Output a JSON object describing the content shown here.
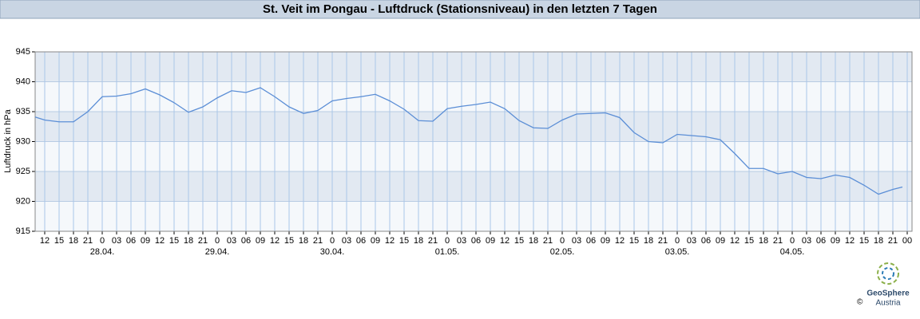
{
  "chart_data": {
    "type": "line",
    "title": "St. Veit im Pongau - Luftdruck (Stationsniveau) in den letzten 7 Tagen",
    "y_label": "Luftdruck in hPa",
    "x": [
      10,
      12,
      15,
      18,
      21,
      24,
      27,
      30,
      33,
      36,
      39,
      42,
      45,
      48,
      51,
      54,
      57,
      60,
      63,
      66,
      69,
      72,
      75,
      78,
      81,
      84,
      87,
      90,
      93,
      96,
      99,
      102,
      105,
      108,
      111,
      114,
      117,
      120,
      123,
      126,
      129,
      132,
      135,
      138,
      141,
      144,
      147,
      150,
      153,
      156,
      159,
      162,
      165,
      168,
      171,
      174,
      177,
      180,
      183,
      186,
      189,
      191
    ],
    "series": [
      {
        "name": "Luftdruck",
        "color": "#5b8ed6",
        "values": [
          934.1,
          933.6,
          933.3,
          933.3,
          935,
          937.5,
          937.6,
          938,
          938.8,
          937.8,
          936.5,
          934.9,
          935.8,
          937.3,
          938.5,
          938.2,
          939,
          937.5,
          935.8,
          934.7,
          935.2,
          936.8,
          937.2,
          937.5,
          937.9,
          936.8,
          935.4,
          933.5,
          933.4,
          935.5,
          935.9,
          936.2,
          936.6,
          935.5,
          933.5,
          932.3,
          932.2,
          933.6,
          934.6,
          934.7,
          934.8,
          934,
          931.5,
          930,
          929.8,
          931.2,
          931,
          930.8,
          930.3,
          928,
          925.5,
          925.5,
          924.6,
          925,
          924,
          923.8,
          924.4,
          924,
          922.7,
          921.2,
          922,
          922.4
        ]
      }
    ],
    "xlim": [
      10,
      193
    ],
    "ylim": [
      915,
      945
    ],
    "yticks": [
      915,
      920,
      925,
      930,
      935,
      940,
      945
    ],
    "xticks": [
      {
        "value": 12,
        "label": "12"
      },
      {
        "value": 15,
        "label": "15"
      },
      {
        "value": 18,
        "label": "18"
      },
      {
        "value": 21,
        "label": "21"
      },
      {
        "value": 24,
        "label": "0"
      },
      {
        "value": 27,
        "label": "03"
      },
      {
        "value": 30,
        "label": "06"
      },
      {
        "value": 33,
        "label": "09"
      },
      {
        "value": 36,
        "label": "12"
      },
      {
        "value": 39,
        "label": "15"
      },
      {
        "value": 42,
        "label": "18"
      },
      {
        "value": 45,
        "label": "21"
      },
      {
        "value": 48,
        "label": "0"
      },
      {
        "value": 51,
        "label": "03"
      },
      {
        "value": 54,
        "label": "06"
      },
      {
        "value": 57,
        "label": "09"
      },
      {
        "value": 60,
        "label": "12"
      },
      {
        "value": 63,
        "label": "15"
      },
      {
        "value": 66,
        "label": "18"
      },
      {
        "value": 69,
        "label": "21"
      },
      {
        "value": 72,
        "label": "0"
      },
      {
        "value": 75,
        "label": "03"
      },
      {
        "value": 78,
        "label": "06"
      },
      {
        "value": 81,
        "label": "09"
      },
      {
        "value": 84,
        "label": "12"
      },
      {
        "value": 87,
        "label": "15"
      },
      {
        "value": 90,
        "label": "18"
      },
      {
        "value": 93,
        "label": "21"
      },
      {
        "value": 96,
        "label": "0"
      },
      {
        "value": 99,
        "label": "03"
      },
      {
        "value": 102,
        "label": "06"
      },
      {
        "value": 105,
        "label": "09"
      },
      {
        "value": 108,
        "label": "12"
      },
      {
        "value": 111,
        "label": "15"
      },
      {
        "value": 114,
        "label": "18"
      },
      {
        "value": 117,
        "label": "21"
      },
      {
        "value": 120,
        "label": "0"
      },
      {
        "value": 123,
        "label": "03"
      },
      {
        "value": 126,
        "label": "06"
      },
      {
        "value": 129,
        "label": "09"
      },
      {
        "value": 132,
        "label": "12"
      },
      {
        "value": 135,
        "label": "15"
      },
      {
        "value": 138,
        "label": "18"
      },
      {
        "value": 141,
        "label": "21"
      },
      {
        "value": 144,
        "label": "0"
      },
      {
        "value": 147,
        "label": "03"
      },
      {
        "value": 150,
        "label": "06"
      },
      {
        "value": 153,
        "label": "09"
      },
      {
        "value": 156,
        "label": "12"
      },
      {
        "value": 159,
        "label": "15"
      },
      {
        "value": 162,
        "label": "18"
      },
      {
        "value": 165,
        "label": "21"
      },
      {
        "value": 168,
        "label": "0"
      },
      {
        "value": 171,
        "label": "03"
      },
      {
        "value": 174,
        "label": "06"
      },
      {
        "value": 177,
        "label": "09"
      },
      {
        "value": 180,
        "label": "12"
      },
      {
        "value": 183,
        "label": "15"
      },
      {
        "value": 186,
        "label": "18"
      },
      {
        "value": 189,
        "label": "21"
      },
      {
        "value": 192,
        "label": "00"
      }
    ],
    "day_ticks": [
      {
        "value": 24,
        "label": "28.04."
      },
      {
        "value": 48,
        "label": "29.04."
      },
      {
        "value": 72,
        "label": "30.04."
      },
      {
        "value": 96,
        "label": "01.05."
      },
      {
        "value": 120,
        "label": "02.05."
      },
      {
        "value": 144,
        "label": "03.05."
      },
      {
        "value": 168,
        "label": "04.05."
      }
    ],
    "grid": true
  },
  "logo": {
    "name": "GeoSphere",
    "sub": "Austria",
    "copyright": "©"
  }
}
